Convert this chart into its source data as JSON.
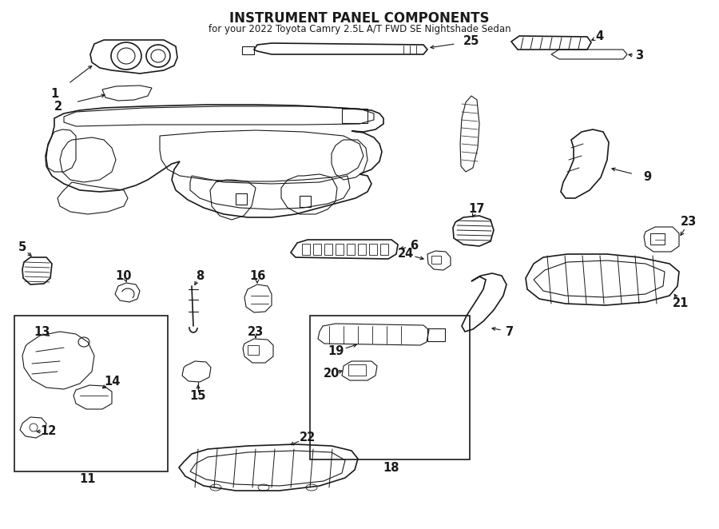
{
  "title": "INSTRUMENT PANEL COMPONENTS",
  "subtitle": "for your 2022 Toyota Camry 2.5L A/T FWD SE Nightshade Sedan",
  "bg_color": "#ffffff",
  "line_color": "#1a1a1a",
  "figsize": [
    9.0,
    6.62
  ],
  "dpi": 100,
  "label_fontsize": 10.5,
  "title_fontsize": 12,
  "subtitle_fontsize": 8.5
}
